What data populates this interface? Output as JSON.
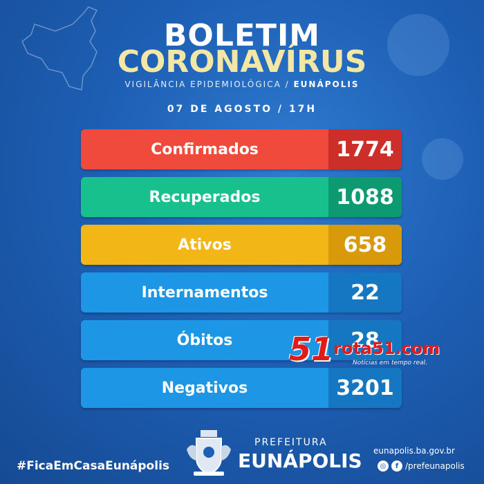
{
  "header": {
    "title_line1": "BOLETIM",
    "title_line2": "CORONAVÍRUS",
    "subtitle_main": "VIGILÂNCIA EPIDEMIOLÓGICA /",
    "subtitle_city": "EUNÁPOLIS",
    "date": "07 DE AGOSTO / 17H"
  },
  "stats": [
    {
      "label": "Confirmados",
      "value": "1774",
      "color": "#f04a3c",
      "value_color": "#cc2f2a"
    },
    {
      "label": "Recuperados",
      "value": "1088",
      "color": "#17c08c",
      "value_color": "#0e9a70"
    },
    {
      "label": "Ativos",
      "value": "658",
      "color": "#f2b616",
      "value_color": "#d89a0a"
    },
    {
      "label": "Internamentos",
      "value": "22",
      "color": "#1e96e6",
      "value_color": "#1577c2"
    },
    {
      "label": "Óbitos",
      "value": "28",
      "color": "#1e96e6",
      "value_color": "#1577c2"
    },
    {
      "label": "Negativos",
      "value": "3201",
      "color": "#1e96e6",
      "value_color": "#1577c2"
    }
  ],
  "watermark": {
    "number": "51",
    "site": "rota51.com",
    "tagline": "Notícias em tempo real."
  },
  "footer": {
    "hashtag": "#FicaEmCasaEunápolis",
    "prefeitura_small": "PREFEITURA",
    "prefeitura_big": "EUNÁPOLIS",
    "website": "eunapolis.ba.gov.br",
    "social_handle": "/prefeunapolis",
    "instagram_icon": "instagram-icon",
    "facebook_icon": "facebook-icon"
  }
}
